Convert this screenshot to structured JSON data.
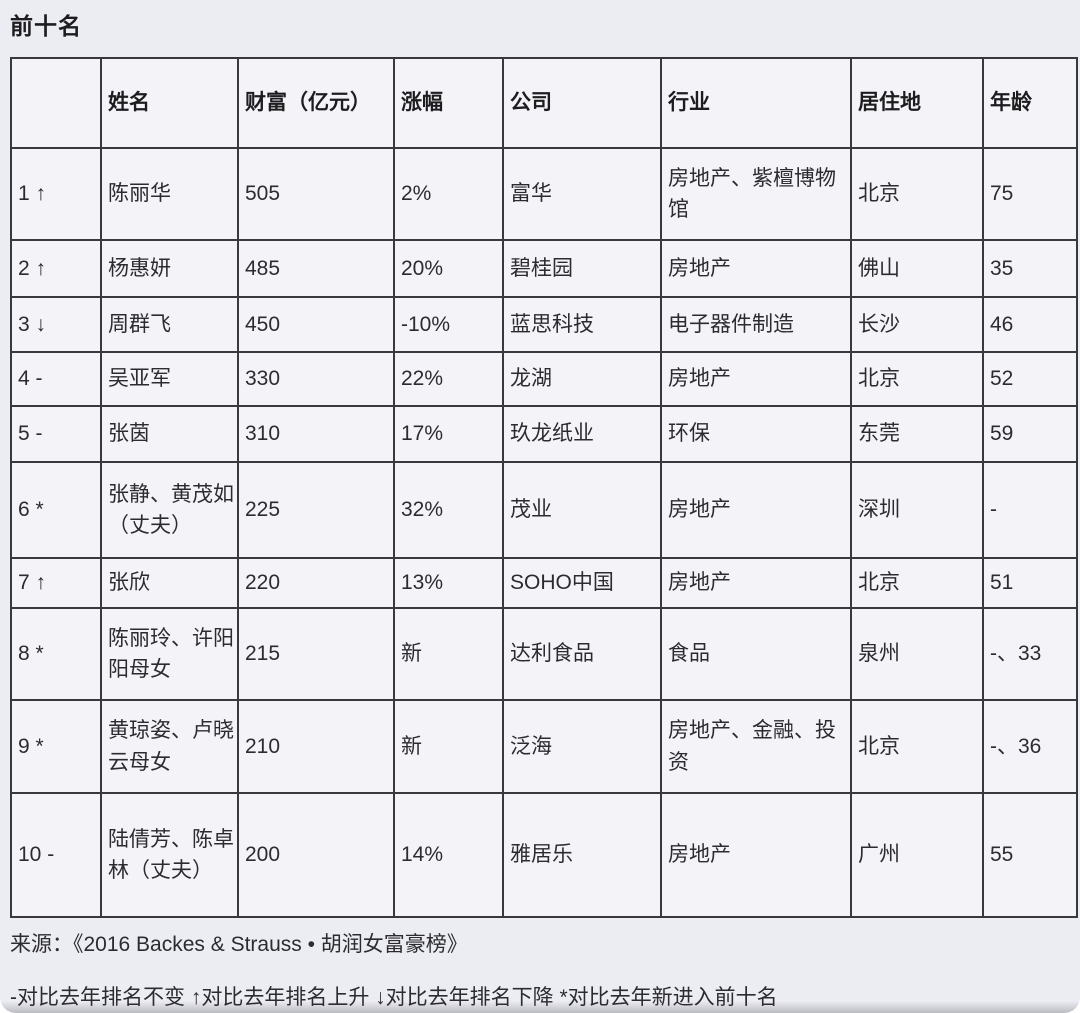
{
  "page": {
    "title": "前十名",
    "source": "来源：《2016 Backes & Strauss • 胡润女富豪榜》",
    "legend": "-对比去年排名不变 ↑对比去年排名上升 ↓对比去年排名下降 *对比去年新进入前十名"
  },
  "table": {
    "headers": [
      "",
      "姓名",
      "财富（亿元）",
      "涨幅",
      "公司",
      "行业",
      "居住地",
      "年龄"
    ],
    "rows": [
      [
        "1 ↑",
        "陈丽华",
        "505",
        "2%",
        "富华",
        "房地产、紫檀博物馆",
        "北京",
        "75"
      ],
      [
        "2 ↑",
        "杨惠妍",
        "485",
        "20%",
        "碧桂园",
        "房地产",
        "佛山",
        "35"
      ],
      [
        "3 ↓",
        "周群飞",
        "450",
        "-10%",
        "蓝思科技",
        "电子器件制造",
        "长沙",
        "46"
      ],
      [
        "4 -",
        "吴亚军",
        "330",
        "22%",
        "龙湖",
        "房地产",
        "北京",
        "52"
      ],
      [
        "5 -",
        "张茵",
        "310",
        "17%",
        "玖龙纸业",
        "环保",
        "东莞",
        "59"
      ],
      [
        "6 *",
        "张静、黄茂如（丈夫）",
        "225",
        "32%",
        "茂业",
        "房地产",
        "深圳",
        "-"
      ],
      [
        "7 ↑",
        "张欣",
        "220",
        "13%",
        "SOHO中国",
        "房地产",
        "北京",
        "51"
      ],
      [
        "8 *",
        "陈丽玲、许阳阳母女",
        "215",
        "新",
        "达利食品",
        "食品",
        "泉州",
        "-、33"
      ],
      [
        "9 *",
        "黄琼姿、卢晓云母女",
        "210",
        "新",
        "泛海",
        "房地产、金融、投资",
        "北京",
        "-、36"
      ],
      [
        "10 -",
        "陆倩芳、陈卓林（丈夫）",
        "200",
        "14%",
        "雅居乐",
        "房地产",
        "广州",
        "55"
      ]
    ]
  },
  "colors": {
    "page_background": "#ecedf2",
    "cell_background": "#f4f4f8",
    "border": "#39393d",
    "text": "#2c2c30"
  }
}
